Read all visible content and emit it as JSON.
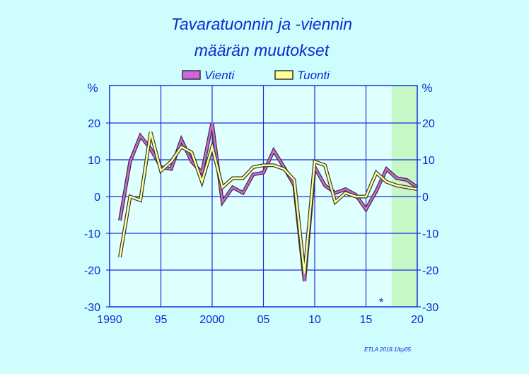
{
  "chart_data": {
    "type": "line",
    "title_line1": "Tavaratuonnin  ja  -viennin",
    "title_line2": "määrän  muutokset",
    "unit_left": "%",
    "unit_right": "%",
    "x": [
      1991,
      1992,
      1993,
      1994,
      1995,
      1996,
      1997,
      1998,
      1999,
      2000,
      2001,
      2002,
      2003,
      2004,
      2005,
      2006,
      2007,
      2008,
      2009,
      2010,
      2011,
      2012,
      2013,
      2014,
      2015,
      2016,
      2017,
      2018,
      2019,
      2020
    ],
    "series": [
      {
        "name": "Vienti",
        "color": "#cc66dd",
        "values": [
          -6.5,
          9.5,
          16.5,
          13,
          8,
          7.5,
          15.5,
          9.5,
          6.5,
          20,
          -1.5,
          2.5,
          1,
          6,
          6.5,
          12.5,
          8,
          3,
          -23,
          8,
          3,
          1,
          2,
          0.5,
          -3.5,
          1.5,
          7.5,
          5,
          4.5,
          2.5
        ]
      },
      {
        "name": "Tuonti",
        "color": "#ffff99",
        "values": [
          -16.5,
          0,
          -1,
          17.5,
          7,
          9.5,
          13.5,
          12,
          4,
          13.5,
          2.5,
          5,
          5,
          8,
          8.5,
          8.5,
          7.5,
          4.5,
          -21,
          9.5,
          8.5,
          -1.5,
          1,
          0,
          0,
          6.5,
          4,
          3,
          2.5,
          2
        ]
      }
    ],
    "y_ticks": [
      "20",
      "10",
      "0",
      "-10",
      "-20",
      "-30"
    ],
    "x_ticks": [
      "1990",
      "95",
      "2000",
      "05",
      "10",
      "15",
      "20"
    ],
    "xlim": [
      1990,
      2020
    ],
    "ylim": [
      -30,
      20
    ],
    "grid": true,
    "forecast_from": 2017.5,
    "forecast_color": "#c6f7c6",
    "plot_background": "#e0ffff",
    "grid_color": "#1a2ce0",
    "marker": "*",
    "credit": "ETLA 2018.1/kp05"
  }
}
